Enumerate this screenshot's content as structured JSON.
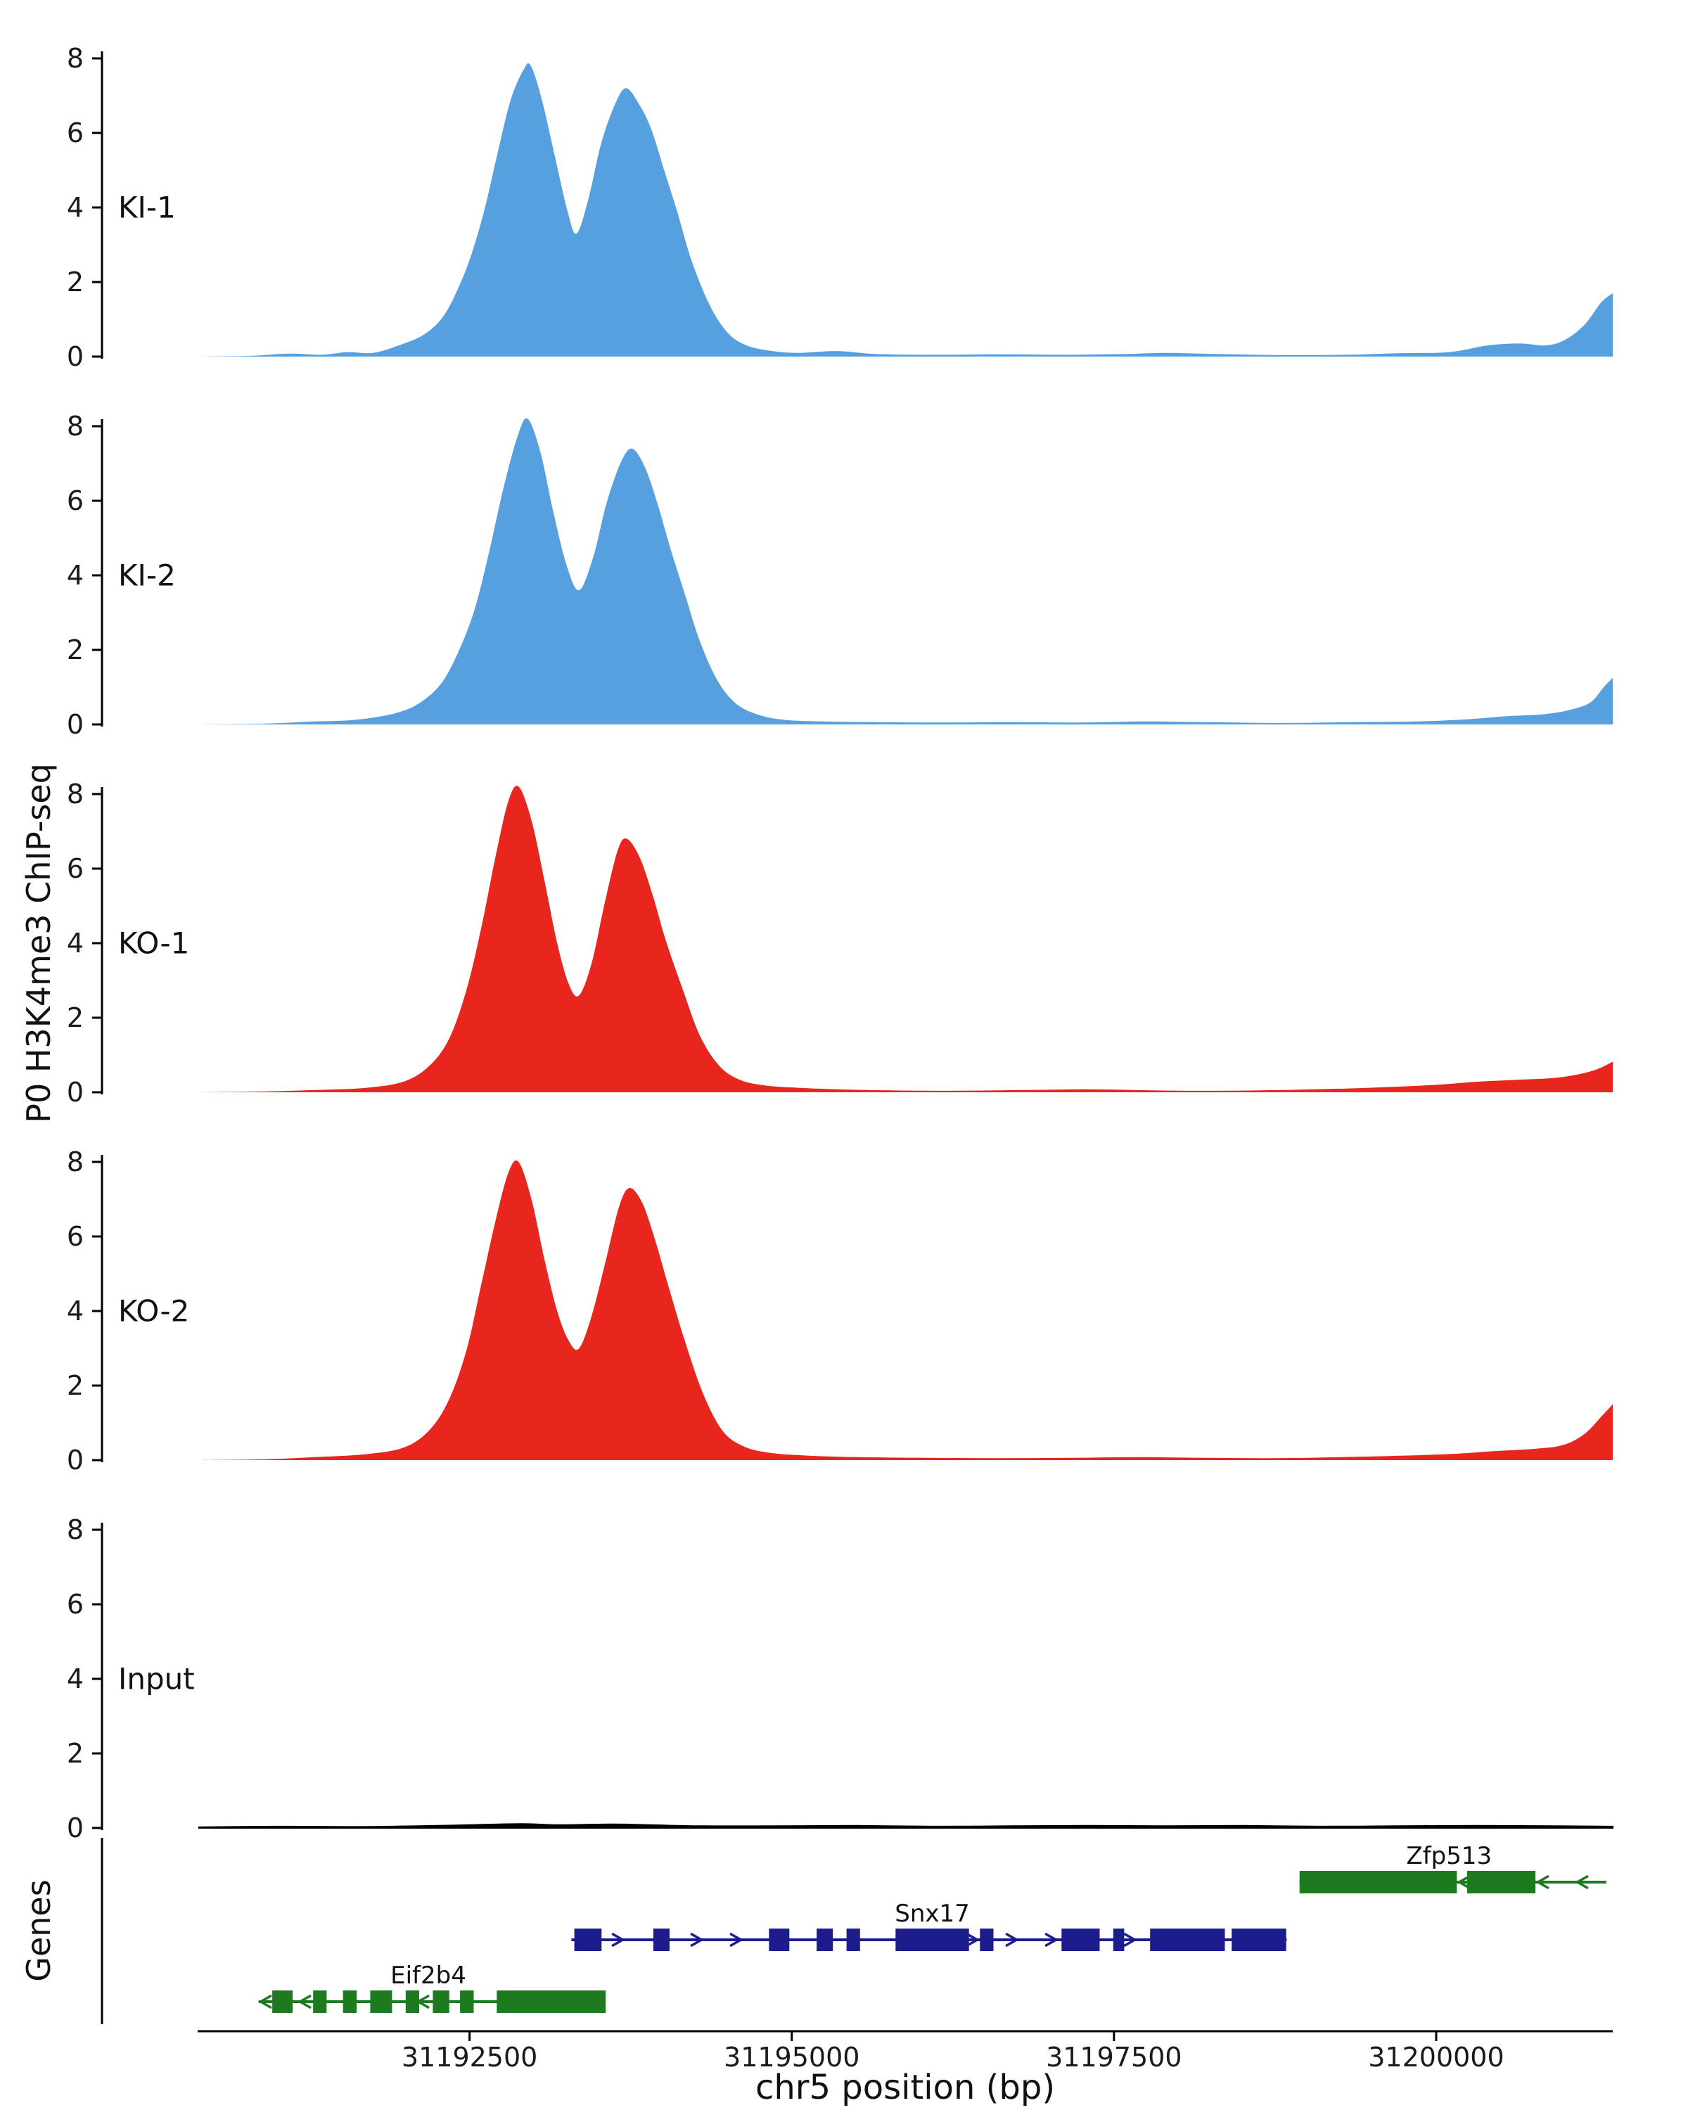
{
  "figure": {
    "y_axis_title": "P0 H3K4me3 ChIP-seq",
    "genes_axis_title": "Genes",
    "x_axis_title": "chr5 position (bp)"
  },
  "chart_data": {
    "type": "area",
    "title": "",
    "xlabel": "chr5 position (bp)",
    "ylabel": "P0 H3K4me3 ChIP-seq",
    "xlim": [
      31190390,
      31201370
    ],
    "ylim": [
      0,
      8
    ],
    "yticks": [
      0,
      2,
      4,
      6,
      8
    ],
    "xticks": [
      {
        "pos": 31192500,
        "label": "31192500"
      },
      {
        "pos": 31195000,
        "label": "31195000"
      },
      {
        "pos": 31197500,
        "label": "31197500"
      },
      {
        "pos": 31200000,
        "label": "31200000"
      }
    ],
    "grid": false,
    "legend": "none",
    "tracks": [
      {
        "label": "KI-1",
        "color": "#56A0E0",
        "points": [
          [
            31190400,
            0
          ],
          [
            31190800,
            0.02
          ],
          [
            31191100,
            0.08
          ],
          [
            31191350,
            0.05
          ],
          [
            31191550,
            0.12
          ],
          [
            31191750,
            0.1
          ],
          [
            31191950,
            0.3
          ],
          [
            31192150,
            0.6
          ],
          [
            31192300,
            1.1
          ],
          [
            31192420,
            1.9
          ],
          [
            31192520,
            2.8
          ],
          [
            31192620,
            4.0
          ],
          [
            31192720,
            5.5
          ],
          [
            31192820,
            6.9
          ],
          [
            31192920,
            7.7
          ],
          [
            31192975,
            7.8
          ],
          [
            31193060,
            6.9
          ],
          [
            31193160,
            5.4
          ],
          [
            31193260,
            3.9
          ],
          [
            31193330,
            3.3
          ],
          [
            31193420,
            4.2
          ],
          [
            31193520,
            5.7
          ],
          [
            31193620,
            6.7
          ],
          [
            31193710,
            7.2
          ],
          [
            31193810,
            6.8
          ],
          [
            31193910,
            6.1
          ],
          [
            31194010,
            5.0
          ],
          [
            31194110,
            3.9
          ],
          [
            31194220,
            2.6
          ],
          [
            31194360,
            1.4
          ],
          [
            31194500,
            0.65
          ],
          [
            31194650,
            0.3
          ],
          [
            31194850,
            0.15
          ],
          [
            31195050,
            0.1
          ],
          [
            31195350,
            0.15
          ],
          [
            31195650,
            0.07
          ],
          [
            31196100,
            0.05
          ],
          [
            31196600,
            0.06
          ],
          [
            31197100,
            0.05
          ],
          [
            31197600,
            0.07
          ],
          [
            31197900,
            0.1
          ],
          [
            31198300,
            0.07
          ],
          [
            31198800,
            0.04
          ],
          [
            31199300,
            0.05
          ],
          [
            31199700,
            0.09
          ],
          [
            31200100,
            0.12
          ],
          [
            31200400,
            0.3
          ],
          [
            31200650,
            0.35
          ],
          [
            31200850,
            0.3
          ],
          [
            31201000,
            0.45
          ],
          [
            31201150,
            0.85
          ],
          [
            31201280,
            1.45
          ],
          [
            31201370,
            1.7
          ]
        ]
      },
      {
        "label": "KI-2",
        "color": "#56A0E0",
        "points": [
          [
            31190400,
            0
          ],
          [
            31190900,
            0.02
          ],
          [
            31191300,
            0.08
          ],
          [
            31191600,
            0.12
          ],
          [
            31191900,
            0.28
          ],
          [
            31192100,
            0.55
          ],
          [
            31192280,
            1.1
          ],
          [
            31192420,
            2.0
          ],
          [
            31192540,
            3.1
          ],
          [
            31192650,
            4.6
          ],
          [
            31192760,
            6.3
          ],
          [
            31192870,
            7.7
          ],
          [
            31192950,
            8.2
          ],
          [
            31193050,
            7.3
          ],
          [
            31193150,
            5.7
          ],
          [
            31193250,
            4.3
          ],
          [
            31193350,
            3.6
          ],
          [
            31193460,
            4.5
          ],
          [
            31193560,
            5.9
          ],
          [
            31193670,
            7.0
          ],
          [
            31193760,
            7.4
          ],
          [
            31193860,
            6.9
          ],
          [
            31193960,
            5.9
          ],
          [
            31194060,
            4.7
          ],
          [
            31194170,
            3.5
          ],
          [
            31194280,
            2.3
          ],
          [
            31194420,
            1.2
          ],
          [
            31194570,
            0.55
          ],
          [
            31194750,
            0.25
          ],
          [
            31194950,
            0.12
          ],
          [
            31195250,
            0.08
          ],
          [
            31195650,
            0.06
          ],
          [
            31196150,
            0.05
          ],
          [
            31196700,
            0.06
          ],
          [
            31197250,
            0.05
          ],
          [
            31197750,
            0.08
          ],
          [
            31198250,
            0.06
          ],
          [
            31198800,
            0.04
          ],
          [
            31199350,
            0.06
          ],
          [
            31199850,
            0.08
          ],
          [
            31200250,
            0.14
          ],
          [
            31200550,
            0.22
          ],
          [
            31200850,
            0.28
          ],
          [
            31201050,
            0.4
          ],
          [
            31201200,
            0.6
          ],
          [
            31201300,
            1.0
          ],
          [
            31201370,
            1.25
          ]
        ]
      },
      {
        "label": "KO-1",
        "color": "#E8261E",
        "points": [
          [
            31190400,
            0
          ],
          [
            31190900,
            0.02
          ],
          [
            31191300,
            0.06
          ],
          [
            31191700,
            0.12
          ],
          [
            31192000,
            0.3
          ],
          [
            31192200,
            0.75
          ],
          [
            31192350,
            1.5
          ],
          [
            31192480,
            2.8
          ],
          [
            31192590,
            4.4
          ],
          [
            31192700,
            6.3
          ],
          [
            31192800,
            7.8
          ],
          [
            31192880,
            8.2
          ],
          [
            31192980,
            7.3
          ],
          [
            31193080,
            5.7
          ],
          [
            31193180,
            4.0
          ],
          [
            31193270,
            2.9
          ],
          [
            31193350,
            2.6
          ],
          [
            31193450,
            3.5
          ],
          [
            31193550,
            5.1
          ],
          [
            31193650,
            6.5
          ],
          [
            31193720,
            6.8
          ],
          [
            31193820,
            6.3
          ],
          [
            31193920,
            5.3
          ],
          [
            31194020,
            4.1
          ],
          [
            31194150,
            2.8
          ],
          [
            31194290,
            1.5
          ],
          [
            31194440,
            0.7
          ],
          [
            31194600,
            0.33
          ],
          [
            31194800,
            0.18
          ],
          [
            31195050,
            0.12
          ],
          [
            31195350,
            0.08
          ],
          [
            31195750,
            0.05
          ],
          [
            31196250,
            0.04
          ],
          [
            31196800,
            0.06
          ],
          [
            31197300,
            0.08
          ],
          [
            31197800,
            0.05
          ],
          [
            31198300,
            0.04
          ],
          [
            31198800,
            0.06
          ],
          [
            31199300,
            0.1
          ],
          [
            31199700,
            0.15
          ],
          [
            31200000,
            0.2
          ],
          [
            31200300,
            0.28
          ],
          [
            31200600,
            0.33
          ],
          [
            31200900,
            0.38
          ],
          [
            31201100,
            0.48
          ],
          [
            31201250,
            0.62
          ],
          [
            31201370,
            0.82
          ]
        ]
      },
      {
        "label": "KO-2",
        "color": "#E8261E",
        "points": [
          [
            31190400,
            0
          ],
          [
            31190900,
            0.02
          ],
          [
            31191300,
            0.08
          ],
          [
            31191700,
            0.16
          ],
          [
            31192000,
            0.35
          ],
          [
            31192200,
            0.85
          ],
          [
            31192350,
            1.7
          ],
          [
            31192480,
            3.0
          ],
          [
            31192590,
            4.7
          ],
          [
            31192700,
            6.4
          ],
          [
            31192800,
            7.7
          ],
          [
            31192880,
            8.0
          ],
          [
            31192980,
            7.0
          ],
          [
            31193080,
            5.4
          ],
          [
            31193180,
            4.0
          ],
          [
            31193270,
            3.2
          ],
          [
            31193350,
            3.0
          ],
          [
            31193450,
            3.9
          ],
          [
            31193560,
            5.4
          ],
          [
            31193660,
            6.8
          ],
          [
            31193740,
            7.3
          ],
          [
            31193840,
            6.9
          ],
          [
            31193940,
            5.9
          ],
          [
            31194040,
            4.7
          ],
          [
            31194170,
            3.2
          ],
          [
            31194310,
            1.8
          ],
          [
            31194460,
            0.8
          ],
          [
            31194620,
            0.38
          ],
          [
            31194820,
            0.2
          ],
          [
            31195120,
            0.12
          ],
          [
            31195520,
            0.08
          ],
          [
            31196050,
            0.06
          ],
          [
            31196600,
            0.05
          ],
          [
            31197150,
            0.06
          ],
          [
            31197700,
            0.08
          ],
          [
            31198250,
            0.06
          ],
          [
            31198750,
            0.05
          ],
          [
            31199250,
            0.08
          ],
          [
            31199750,
            0.12
          ],
          [
            31200150,
            0.17
          ],
          [
            31200450,
            0.24
          ],
          [
            31200750,
            0.3
          ],
          [
            31200980,
            0.4
          ],
          [
            31201150,
            0.7
          ],
          [
            31201290,
            1.2
          ],
          [
            31201370,
            1.5
          ]
        ]
      },
      {
        "label": "Input",
        "color": "#000000",
        "stroke": "#000000",
        "points": [
          [
            31190400,
            0.02
          ],
          [
            31191000,
            0.04
          ],
          [
            31191600,
            0.03
          ],
          [
            31192100,
            0.05
          ],
          [
            31192500,
            0.08
          ],
          [
            31192900,
            0.11
          ],
          [
            31193200,
            0.08
          ],
          [
            31193600,
            0.1
          ],
          [
            31193900,
            0.08
          ],
          [
            31194300,
            0.05
          ],
          [
            31194900,
            0.05
          ],
          [
            31195500,
            0.06
          ],
          [
            31196100,
            0.04
          ],
          [
            31196700,
            0.05
          ],
          [
            31197300,
            0.06
          ],
          [
            31197900,
            0.05
          ],
          [
            31198500,
            0.06
          ],
          [
            31199100,
            0.04
          ],
          [
            31199700,
            0.05
          ],
          [
            31200300,
            0.06
          ],
          [
            31200900,
            0.05
          ],
          [
            31201370,
            0.04
          ]
        ]
      }
    ],
    "genes": {
      "items": [
        {
          "name": "Zfp513",
          "color": "#1E7A1E",
          "strand": "-",
          "row": 0,
          "start": 31198940,
          "end": 31201320,
          "label_pos": 31200100,
          "exons": [
            [
              31198940,
              31200160
            ],
            [
              31200240,
              31200770
            ]
          ]
        },
        {
          "name": "Snx17",
          "color": "#1C1C8C",
          "strand": "+",
          "row": 1,
          "start": 31193290,
          "end": 31198840,
          "label_pos": 31196090,
          "exons": [
            [
              31193313,
              31193524
            ],
            [
              31193926,
              31194052
            ],
            [
              31194823,
              31194981
            ],
            [
              31195193,
              31195319
            ],
            [
              31195425,
              31195530
            ],
            [
              31195805,
              31196375
            ],
            [
              31196460,
              31196565
            ],
            [
              31197093,
              31197389
            ],
            [
              31197494,
              31197579
            ],
            [
              31197780,
              31198360
            ],
            [
              31198413,
              31198836
            ]
          ]
        },
        {
          "name": "Eif2b4",
          "color": "#1E7A1E",
          "strand": "-",
          "row": 2,
          "start": 31190863,
          "end": 31193556,
          "label_pos": 31192180,
          "exons": [
            [
              31190969,
              31191127
            ],
            [
              31191286,
              31191391
            ],
            [
              31191518,
              31191624
            ],
            [
              31191729,
              31191898
            ],
            [
              31192004,
              31192109
            ],
            [
              31192215,
              31192342
            ],
            [
              31192426,
              31192532
            ],
            [
              31192711,
              31193556
            ]
          ]
        }
      ]
    }
  }
}
